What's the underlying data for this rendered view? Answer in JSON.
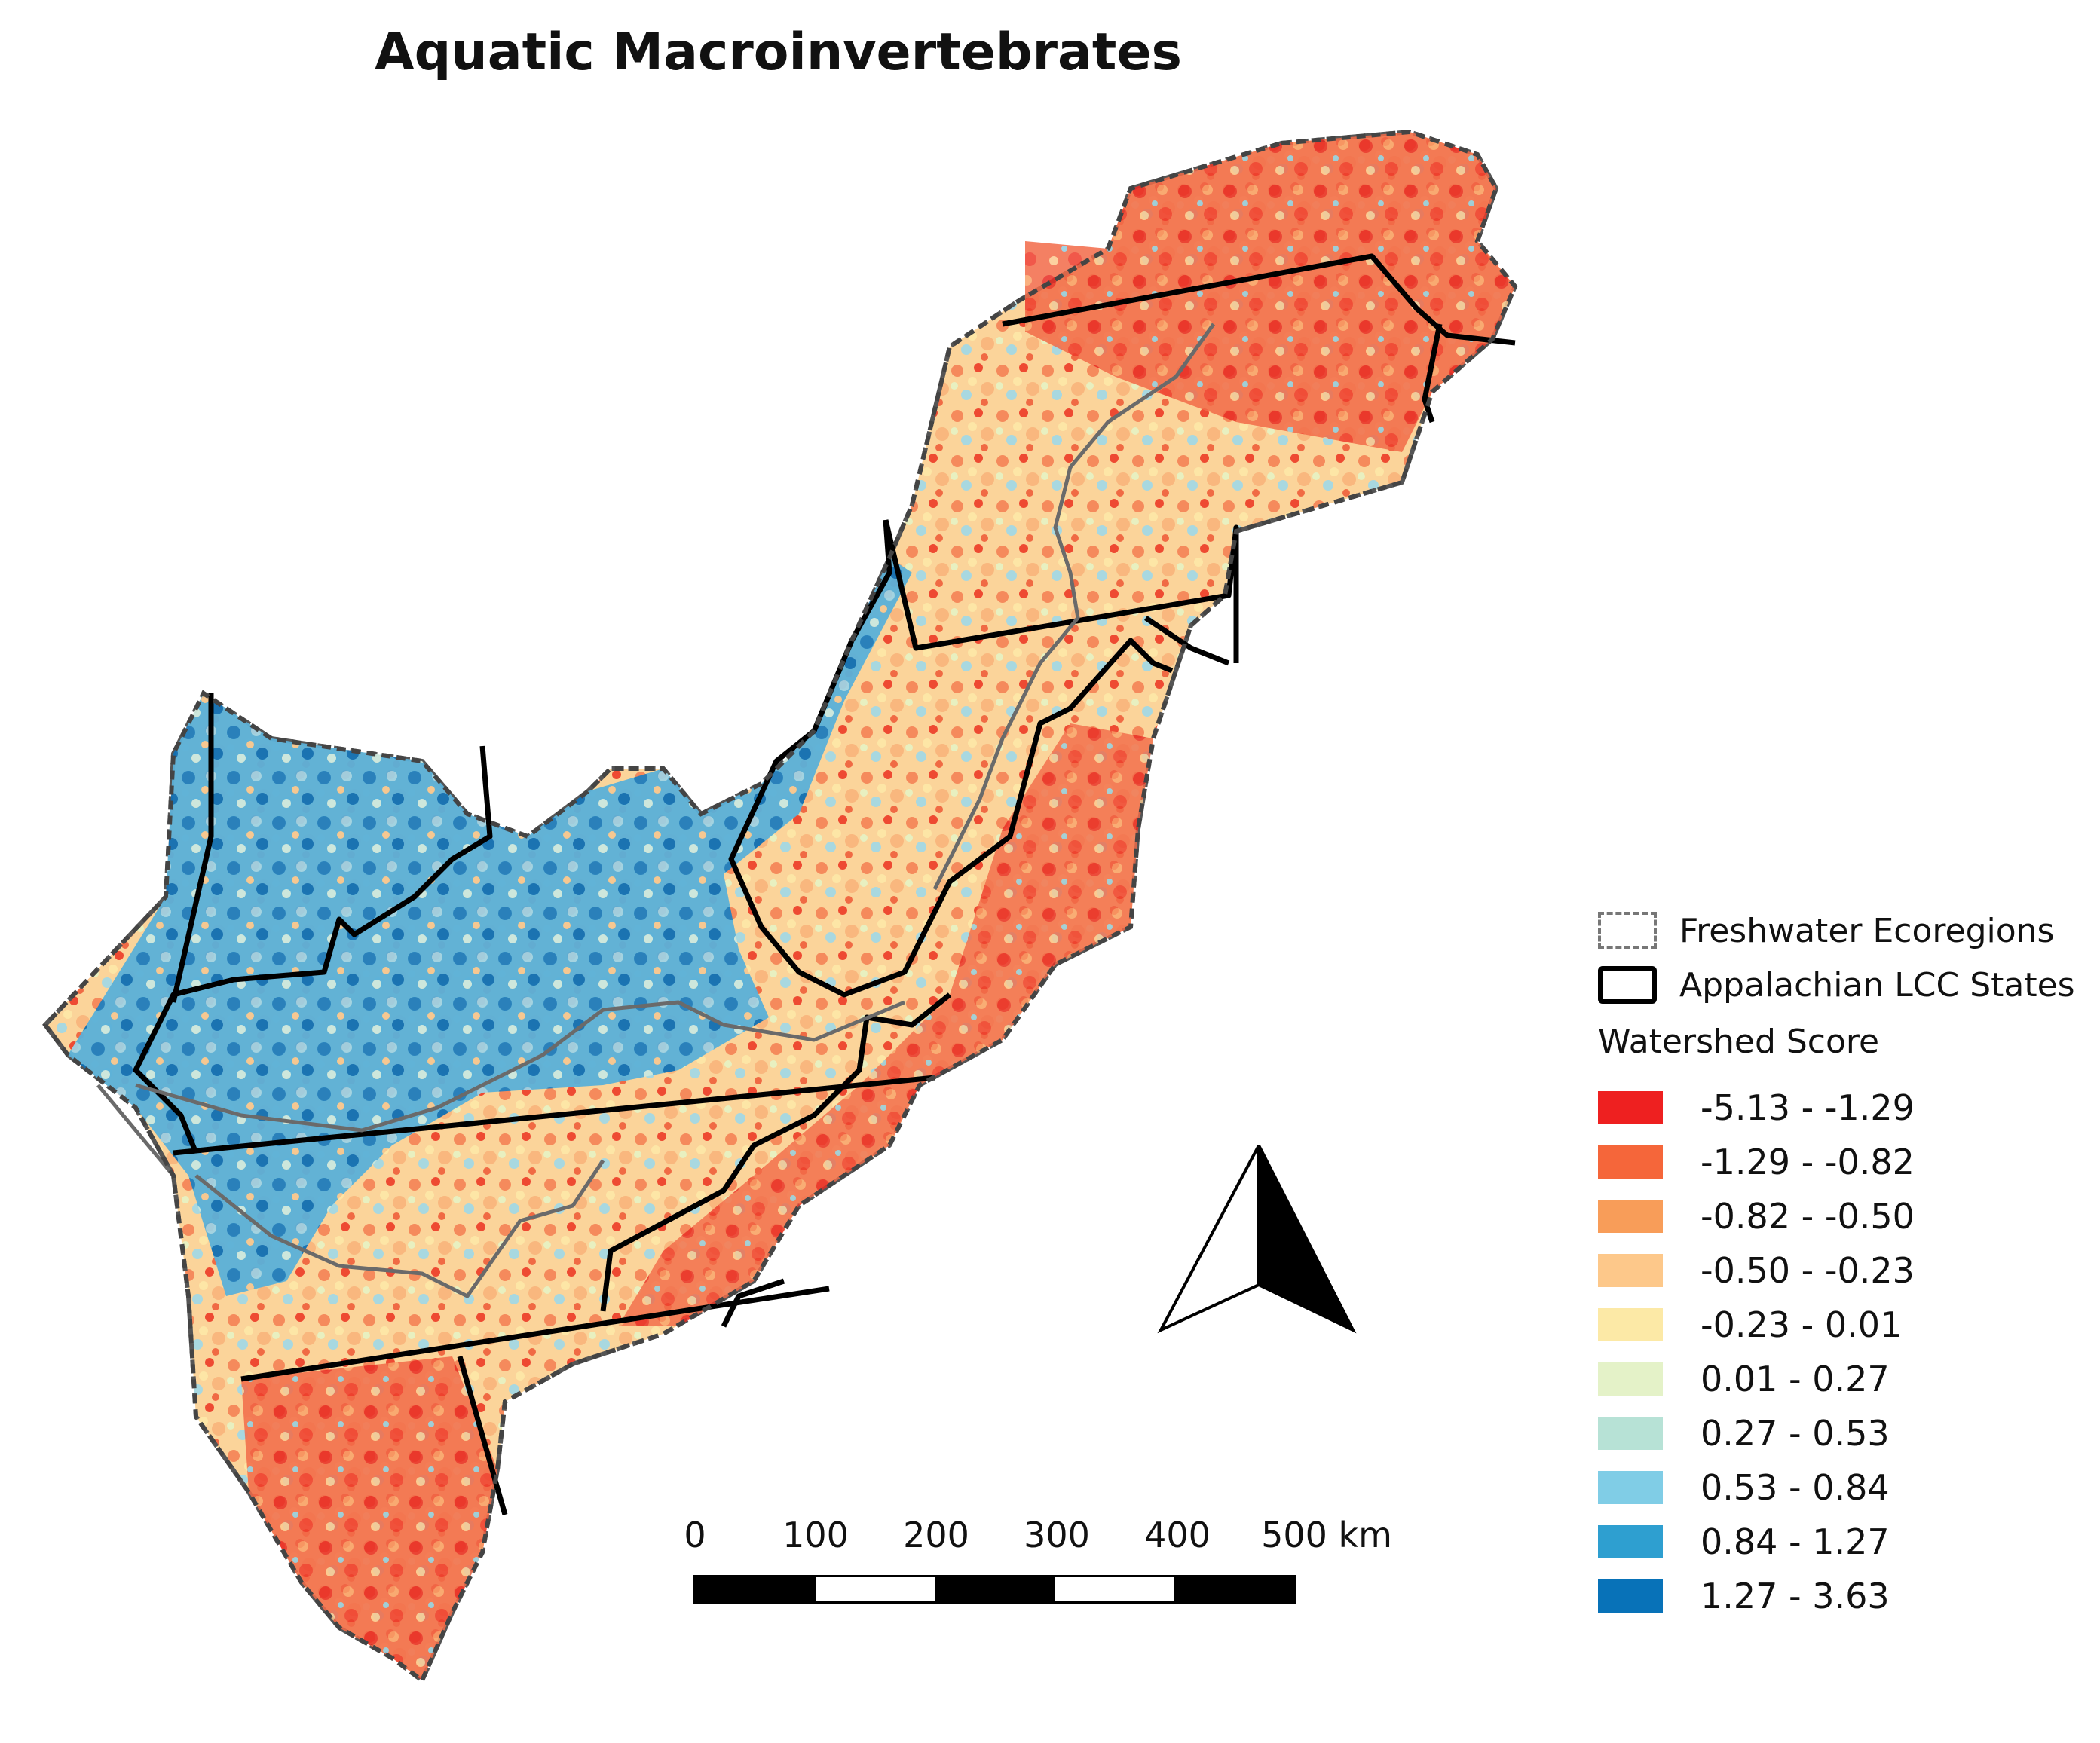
{
  "title": "Aquatic Macroinvertebrates",
  "legend": {
    "ecoregions_label": "Freshwater Ecoregions",
    "states_label": "Appalachian LCC States",
    "score_heading": "Watershed Score",
    "classes": [
      {
        "label": "-5.13 - -1.29",
        "color": "#ee2020"
      },
      {
        "label": "-1.29 - -0.82",
        "color": "#f5663a"
      },
      {
        "label": "-0.82 - -0.50",
        "color": "#f89d59"
      },
      {
        "label": "-0.50 - -0.23",
        "color": "#fdc88a"
      },
      {
        "label": "-0.23 - 0.01",
        "color": "#fce9a6"
      },
      {
        "label": "0.01 - 0.27",
        "color": "#e4f2c8"
      },
      {
        "label": "0.27 - 0.53",
        "color": "#b7e2d6"
      },
      {
        "label": "0.53 - 0.84",
        "color": "#80cde6"
      },
      {
        "label": "0.84 - 1.27",
        "color": "#2e9fd0"
      },
      {
        "label": "1.27 - 3.63",
        "color": "#0872b8"
      }
    ]
  },
  "scale_bar": {
    "ticks": [
      "0",
      "100",
      "200",
      "300",
      "400",
      "500 km"
    ]
  },
  "north_arrow": {
    "icon": "north-arrow-icon"
  }
}
